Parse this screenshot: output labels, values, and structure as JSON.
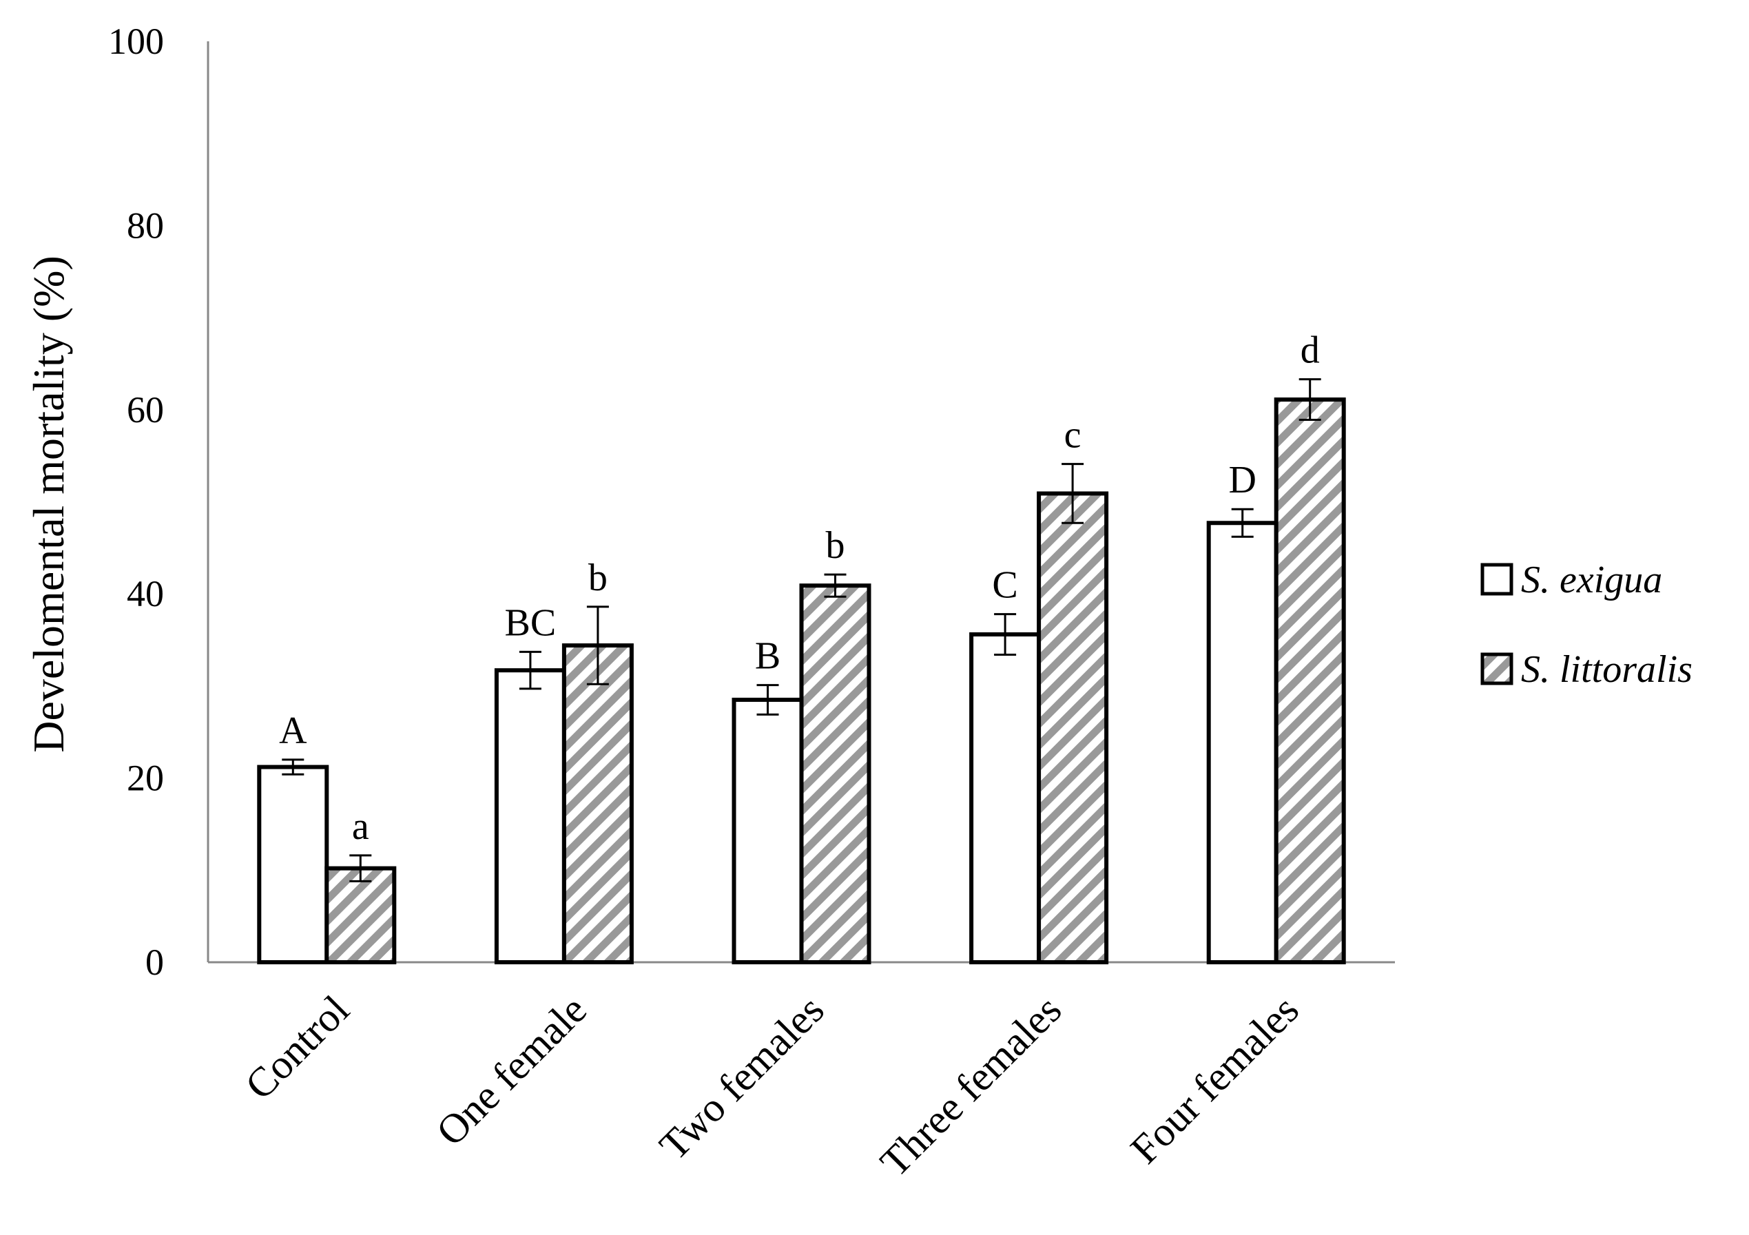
{
  "chart_data": {
    "type": "bar",
    "title": "",
    "xlabel": "",
    "ylabel": "Develomental mortality (%)",
    "ylim": [
      0,
      100
    ],
    "yticks": [
      0,
      20,
      40,
      60,
      80,
      100
    ],
    "grid": false,
    "legend_position": "right",
    "categories": [
      "Control",
      "One female",
      "Two females",
      "Three females",
      "Four females"
    ],
    "series": [
      {
        "name": "S. exigua",
        "fill": "white",
        "values": [
          21.2,
          31.7,
          28.5,
          35.6,
          47.7
        ],
        "errors": [
          0.8,
          2.0,
          1.6,
          2.2,
          1.5
        ],
        "letters": [
          "A",
          "BC",
          "B",
          "C",
          "D"
        ]
      },
      {
        "name": "S. littoralis",
        "fill": "hatched",
        "values": [
          10.2,
          34.4,
          40.9,
          50.9,
          61.1
        ],
        "errors": [
          1.4,
          4.2,
          1.2,
          3.2,
          2.2
        ],
        "letters": [
          "a",
          "b",
          "b",
          "c",
          "d"
        ]
      }
    ],
    "colors": {
      "axis": "#888888",
      "bar_outline": "#000000",
      "hatch": "#999999",
      "text": "#000000"
    }
  }
}
